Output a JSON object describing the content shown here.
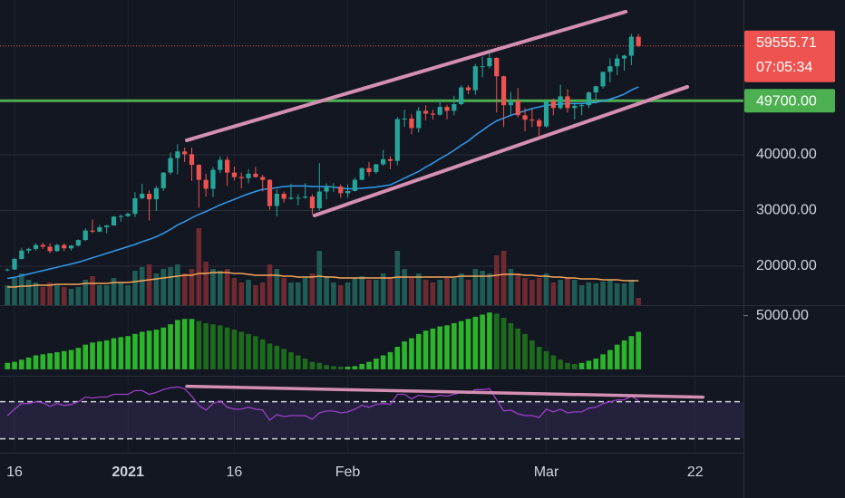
{
  "chart_data": [
    {
      "type": "candlestick",
      "categories": [
        null,
        "16",
        null,
        null,
        null,
        null,
        null,
        null,
        null,
        null,
        null,
        null,
        null,
        null,
        null,
        null,
        null,
        "2021",
        null,
        null,
        null,
        null,
        null,
        null,
        null,
        null,
        null,
        null,
        null,
        null,
        null,
        null,
        "16",
        null,
        null,
        null,
        null,
        null,
        null,
        null,
        null,
        null,
        null,
        null,
        null,
        null,
        null,
        null,
        "Feb",
        null,
        null,
        null,
        null,
        null,
        null,
        null,
        null,
        null,
        null,
        null,
        null,
        null,
        null,
        null,
        null,
        null,
        null,
        null,
        null,
        null,
        null,
        null,
        null,
        null,
        null,
        null,
        "Mar",
        null,
        null,
        null,
        null,
        null,
        null,
        null,
        null,
        null,
        null,
        null,
        null,
        null,
        null,
        null,
        null,
        null,
        null,
        null,
        null,
        "22",
        null,
        null,
        null,
        null,
        null,
        null
      ],
      "open": [
        19300,
        19400,
        21300,
        22800,
        23100,
        23800,
        23500,
        22700,
        23800,
        23200,
        23700,
        24700,
        26400,
        26200,
        27000,
        27300,
        28900,
        29000,
        29400,
        32200,
        33000,
        32000,
        34000,
        36800,
        39400,
        40600,
        40100,
        38200,
        35500,
        33900,
        37300,
        39100,
        36800,
        36000,
        35800,
        36600,
        36000,
        35500,
        30800,
        33000,
        32100,
        32300,
        32300,
        32500,
        30400,
        33400,
        34300,
        34300,
        33100,
        33500,
        35500,
        37600,
        36900,
        38300,
        39200,
        38900,
        46400,
        46500,
        44800,
        47900,
        47400,
        47200,
        48600,
        47900,
        49100,
        52100,
        51600,
        55900,
        55900,
        57400,
        54100,
        48900,
        49700,
        47100,
        46300,
        46200,
        45100,
        49600,
        48400,
        50500,
        48400,
        48800,
        48900,
        51200,
        52300,
        54900,
        55900,
        57300,
        57800,
        61200,
        null,
        null,
        null,
        null,
        null,
        null,
        null,
        null,
        null,
        null,
        null,
        null,
        null,
        null
      ],
      "high": [
        19600,
        21500,
        23300,
        23300,
        24100,
        24200,
        24100,
        24000,
        24100,
        23800,
        24800,
        26800,
        28400,
        27400,
        27400,
        29000,
        29300,
        29600,
        33300,
        34800,
        33600,
        34400,
        36900,
        40400,
        41900,
        41300,
        41300,
        38300,
        36600,
        37800,
        39700,
        39700,
        37900,
        36800,
        37400,
        37800,
        36400,
        35600,
        33800,
        33400,
        34800,
        32900,
        34900,
        32900,
        38500,
        34900,
        34900,
        34700,
        34700,
        35900,
        37700,
        38700,
        38300,
        40900,
        39700,
        46800,
        48100,
        47300,
        48600,
        48900,
        48100,
        49700,
        49000,
        50600,
        52500,
        52500,
        56300,
        57600,
        58300,
        57500,
        54200,
        51300,
        52000,
        48400,
        48300,
        46600,
        49800,
        50100,
        52600,
        51800,
        49400,
        49200,
        51400,
        52400,
        54900,
        57300,
        58000,
        58000,
        61700,
        61700,
        null,
        null,
        null,
        null,
        null,
        null,
        null,
        null,
        null,
        null,
        null,
        null,
        null,
        null
      ],
      "low": [
        19100,
        19300,
        21200,
        22300,
        22800,
        23100,
        22300,
        22600,
        22700,
        22800,
        23500,
        24500,
        25900,
        26100,
        25900,
        27300,
        28000,
        28800,
        28800,
        32000,
        28200,
        29900,
        33500,
        36400,
        36500,
        38700,
        35300,
        30500,
        32500,
        32400,
        36700,
        34400,
        35400,
        34000,
        34900,
        35900,
        33400,
        30100,
        28900,
        31400,
        31900,
        30900,
        32100,
        29300,
        30000,
        32000,
        33300,
        32300,
        32300,
        33400,
        35400,
        36200,
        36600,
        38000,
        37400,
        38100,
        45000,
        43700,
        44000,
        46200,
        46300,
        47000,
        46400,
        47100,
        48900,
        50900,
        50800,
        53900,
        55500,
        47600,
        45000,
        47000,
        46700,
        44200,
        45000,
        43100,
        44900,
        47100,
        48100,
        47600,
        46300,
        47100,
        48400,
        49300,
        51900,
        53000,
        54300,
        55100,
        56100,
        59300,
        null,
        null,
        null,
        null,
        null,
        null,
        null,
        null,
        null,
        null,
        null,
        null,
        null,
        null
      ],
      "close": [
        19400,
        21300,
        22800,
        23100,
        23800,
        23500,
        22700,
        23800,
        23200,
        23700,
        24700,
        26400,
        26200,
        27000,
        27300,
        28900,
        29000,
        29400,
        32200,
        33000,
        32000,
        34000,
        36800,
        39400,
        40600,
        40100,
        38200,
        35500,
        33900,
        37300,
        39100,
        36800,
        36000,
        35800,
        36600,
        36000,
        35500,
        30800,
        33000,
        32100,
        32300,
        32300,
        32500,
        30400,
        33400,
        34300,
        34300,
        33100,
        33500,
        35500,
        37600,
        36900,
        38300,
        39200,
        38900,
        46400,
        46500,
        44800,
        47900,
        47400,
        47200,
        48600,
        47900,
        49100,
        52100,
        51600,
        55900,
        55900,
        57400,
        54100,
        48900,
        49700,
        47100,
        46300,
        46200,
        45100,
        49600,
        48400,
        50500,
        48400,
        48800,
        48900,
        51200,
        52300,
        54900,
        55900,
        57300,
        57800,
        61200,
        59555.71,
        null,
        null,
        null,
        null,
        null,
        null,
        null,
        null,
        null,
        null,
        null,
        null,
        null,
        null
      ],
      "up_color": "#26a69a",
      "down_color": "#ef5350",
      "ylim": [
        13000,
        67800
      ],
      "yticks": [
        {
          "value": 20000,
          "label": "20000.00"
        },
        {
          "value": 30000,
          "label": "30000.00"
        },
        {
          "value": 40000,
          "label": "40000.00"
        }
      ],
      "ma": {
        "color": "#2e9cf0",
        "values": [
          17800,
          18000,
          18300,
          18600,
          18900,
          19200,
          19500,
          19800,
          20100,
          20400,
          20700,
          21100,
          21500,
          21900,
          22300,
          22700,
          23100,
          23500,
          23900,
          24400,
          24800,
          25300,
          25900,
          26600,
          27400,
          28000,
          28700,
          29300,
          29800,
          30400,
          31000,
          31500,
          32000,
          32500,
          33000,
          33400,
          33800,
          33900,
          34100,
          34300,
          34400,
          34400,
          34400,
          34300,
          34300,
          34300,
          34200,
          34000,
          33900,
          33900,
          34000,
          34100,
          34200,
          34400,
          34600,
          35200,
          35800,
          36400,
          37000,
          37800,
          38500,
          39300,
          40000,
          40800,
          41700,
          42500,
          43500,
          44400,
          45300,
          46100,
          46600,
          47100,
          47500,
          47900,
          48300,
          48600,
          48900,
          49000,
          49100,
          49200,
          49200,
          49200,
          49300,
          49400,
          49700,
          50000,
          50400,
          50900,
          51600,
          52200,
          null,
          null,
          null,
          null,
          null,
          null,
          null,
          null,
          null,
          null,
          null,
          null,
          null,
          null
        ]
      },
      "volume": {
        "ylim": [
          0,
          100
        ],
        "up_color": "#1f5c55",
        "down_color": "#6e2a31",
        "values": [
          22,
          30,
          35,
          28,
          25,
          20,
          25,
          22,
          20,
          18,
          20,
          28,
          32,
          22,
          22,
          30,
          25,
          22,
          38,
          42,
          45,
          35,
          40,
          42,
          45,
          35,
          40,
          85,
          48,
          40,
          38,
          40,
          30,
          25,
          28,
          22,
          25,
          45,
          40,
          30,
          25,
          25,
          30,
          35,
          60,
          32,
          25,
          22,
          25,
          30,
          32,
          28,
          28,
          35,
          30,
          60,
          40,
          30,
          35,
          28,
          25,
          28,
          30,
          30,
          35,
          28,
          40,
          38,
          35,
          55,
          60,
          40,
          35,
          30,
          28,
          30,
          35,
          25,
          28,
          30,
          28,
          22,
          25,
          24,
          26,
          28,
          24,
          24,
          28,
          8,
          null,
          null,
          null,
          null,
          null,
          null,
          null,
          null,
          null,
          null,
          null,
          null,
          null,
          null
        ],
        "ma": {
          "color": "#f5a65b",
          "values": [
            20,
            20,
            21,
            21,
            22,
            22,
            22,
            23,
            23,
            23,
            23,
            24,
            24,
            24,
            24,
            25,
            25,
            25,
            26,
            27,
            28,
            29,
            30,
            31,
            32,
            33,
            33,
            35,
            35,
            36,
            36,
            36,
            35,
            35,
            34,
            33,
            33,
            33,
            33,
            32,
            32,
            31,
            31,
            31,
            32,
            31,
            31,
            30,
            30,
            30,
            30,
            30,
            30,
            30,
            30,
            31,
            31,
            31,
            31,
            31,
            31,
            31,
            31,
            31,
            32,
            32,
            32,
            32,
            32,
            33,
            34,
            34,
            34,
            33,
            33,
            32,
            32,
            31,
            31,
            30,
            30,
            29,
            29,
            29,
            28,
            28,
            28,
            27,
            27,
            27,
            null,
            null,
            null,
            null,
            null,
            null,
            null,
            null,
            null,
            null,
            null,
            null,
            null,
            null
          ]
        }
      },
      "hline": {
        "value": 49700,
        "label": "49700.00",
        "color": "#4caf50"
      },
      "last_price": 59555.71,
      "countdown": "07:05:34",
      "trendline_color": "#d48fb3",
      "trendlines": [
        {
          "from": [
            25.3,
            42600
          ],
          "to": [
            87.2,
            65700
          ]
        },
        {
          "from": [
            43.3,
            29100
          ],
          "to": [
            95.9,
            52200
          ]
        }
      ]
    },
    {
      "type": "bar",
      "values": [
        600,
        700,
        900,
        1100,
        1300,
        1400,
        1500,
        1600,
        1700,
        1800,
        2000,
        2300,
        2500,
        2600,
        2700,
        2900,
        3000,
        3100,
        3300,
        3500,
        3600,
        3700,
        3900,
        4200,
        4600,
        4700,
        4700,
        4500,
        4300,
        4200,
        4100,
        3900,
        3700,
        3500,
        3300,
        3100,
        2800,
        2400,
        2200,
        1900,
        1600,
        1300,
        1000,
        700,
        600,
        400,
        300,
        250,
        250,
        300,
        500,
        700,
        1000,
        1300,
        1600,
        2100,
        2600,
        2900,
        3300,
        3600,
        3800,
        4000,
        4100,
        4300,
        4500,
        4700,
        4900,
        5100,
        5300,
        5200,
        4800,
        4300,
        3800,
        3300,
        2700,
        2100,
        1700,
        1300,
        900,
        600,
        500,
        600,
        800,
        1000,
        1400,
        1800,
        2300,
        2700,
        3100,
        3500,
        null,
        null,
        null,
        null,
        null,
        null,
        null,
        null,
        null,
        null,
        null,
        null,
        null,
        null
      ],
      "up_color": "#2bb52b",
      "down_color": "#1d6b1d",
      "ylim": [
        -600,
        5900
      ],
      "yticks": [
        {
          "value": 5000,
          "label": "5000.00"
        }
      ]
    },
    {
      "type": "line",
      "values": [
        55,
        62,
        68,
        68,
        70,
        69,
        65,
        68,
        66,
        67,
        70,
        75,
        74,
        75,
        75,
        78,
        78,
        78,
        82,
        82,
        78,
        80,
        83,
        85,
        86,
        84,
        76,
        66,
        61,
        68,
        71,
        64,
        62,
        62,
        64,
        62,
        61,
        50,
        56,
        54,
        55,
        55,
        55,
        51,
        58,
        60,
        60,
        58,
        59,
        62,
        66,
        64,
        67,
        68,
        67,
        78,
        78,
        73,
        77,
        76,
        75,
        77,
        76,
        78,
        80,
        79,
        83,
        83,
        84,
        72,
        60,
        61,
        57,
        55,
        55,
        53,
        62,
        59,
        62,
        58,
        59,
        59,
        63,
        64,
        68,
        70,
        72,
        72,
        76,
        71,
        null,
        null,
        null,
        null,
        null,
        null,
        null,
        null,
        null,
        null,
        null,
        null,
        null,
        null
      ],
      "color": "#9c3ec8",
      "band_color": "rgba(126,87,194,0.16)",
      "ylim": [
        15,
        97
      ],
      "bands": [
        30,
        70
      ],
      "trendline": {
        "color": "#d48fb3",
        "from": [
          25.3,
          86.6
        ],
        "to": [
          98.1,
          74.9
        ]
      }
    }
  ]
}
